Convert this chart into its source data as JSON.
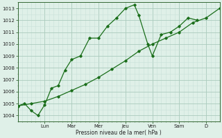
{
  "bg_color": "#dff0e8",
  "grid_color_major": "#aacabc",
  "grid_color_minor": "#c8e0d8",
  "line_color": "#1a6e1a",
  "xlabel": "Pression niveau de la mer( hPa )",
  "ylim": [
    1003.5,
    1013.5
  ],
  "yticks": [
    1004,
    1005,
    1006,
    1007,
    1008,
    1009,
    1010,
    1011,
    1012,
    1013
  ],
  "x_day_labels": [
    "Lun",
    "Mar",
    "Mer",
    "Jeu",
    "Ven",
    "Sam",
    "D"
  ],
  "x_day_positions": [
    1.0,
    2.0,
    3.0,
    4.0,
    5.0,
    6.0,
    7.0
  ],
  "xlim": [
    0,
    7.5
  ],
  "series1_x": [
    0.0,
    0.25,
    0.5,
    0.75,
    1.0,
    1.25,
    1.5,
    1.75,
    2.0,
    2.33,
    2.67,
    3.0,
    3.33,
    3.67,
    4.0,
    4.33,
    4.5,
    4.83,
    5.0,
    5.33,
    5.67,
    6.0,
    6.33,
    6.67
  ],
  "series1_y": [
    1004.8,
    1005.0,
    1004.4,
    1004.0,
    1004.9,
    1006.3,
    1006.5,
    1007.8,
    1008.7,
    1009.0,
    1010.5,
    1010.5,
    1011.5,
    1012.2,
    1013.0,
    1013.3,
    1012.4,
    1010.0,
    1009.0,
    1010.8,
    1011.0,
    1011.5,
    1012.2,
    1012.0
  ],
  "series2_x": [
    0.0,
    0.5,
    1.0,
    1.5,
    2.0,
    2.5,
    3.0,
    3.5,
    4.0,
    4.5,
    5.0,
    5.5,
    6.0,
    6.5,
    7.0,
    7.5
  ],
  "series2_y": [
    1004.8,
    1005.0,
    1005.2,
    1005.6,
    1006.1,
    1006.6,
    1007.2,
    1007.9,
    1008.6,
    1009.4,
    1010.0,
    1010.5,
    1011.0,
    1011.8,
    1012.2,
    1013.0
  ],
  "marker": "D",
  "marker_size": 1.8,
  "line_width": 0.9,
  "tick_fontsize": 5.0,
  "xlabel_fontsize": 5.5
}
